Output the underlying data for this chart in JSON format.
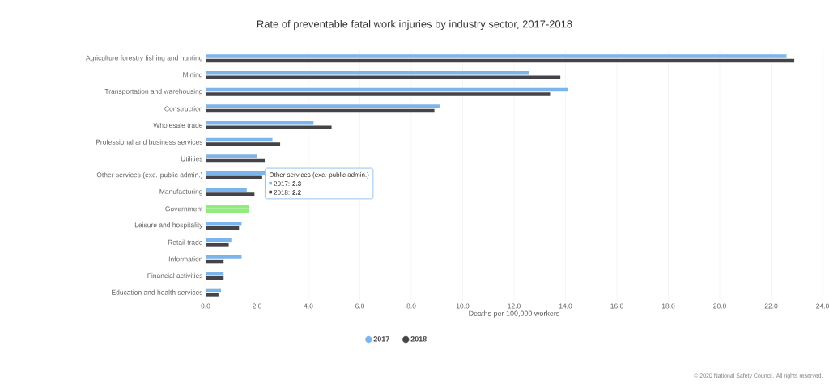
{
  "chart_data": {
    "type": "bar",
    "orientation": "horizontal",
    "title": "Rate of preventable fatal work injuries by industry sector, 2017-2018",
    "xlabel": "Deaths per 100,000 workers",
    "categories": [
      "Agriculture forestry fishing and hunting",
      "Mining",
      "Transportation and warehousing",
      "Construction",
      "Wholesale trade",
      "Professional and business services",
      "Utilities",
      "Other services (exc. public admin.)",
      "Manufacturing",
      "Government",
      "Leisure and hospitality",
      "Retail trade",
      "Information",
      "Financial activities",
      "Education and health services"
    ],
    "series": [
      {
        "name": "2017",
        "color": "#7cb5ec",
        "colors": [
          "#7cb5ec",
          "#7cb5ec",
          "#7cb5ec",
          "#7cb5ec",
          "#7cb5ec",
          "#7cb5ec",
          "#7cb5ec",
          "#7cb5ec",
          "#7cb5ec",
          "#90ed7d",
          "#7cb5ec",
          "#7cb5ec",
          "#7cb5ec",
          "#7cb5ec",
          "#7cb5ec"
        ],
        "values": [
          22.6,
          12.6,
          14.1,
          9.1,
          4.2,
          2.6,
          2.0,
          2.3,
          1.6,
          1.7,
          1.4,
          1.0,
          1.4,
          0.7,
          0.6
        ]
      },
      {
        "name": "2018",
        "color": "#434348",
        "colors": [
          "#434348",
          "#434348",
          "#434348",
          "#434348",
          "#434348",
          "#434348",
          "#434348",
          "#434348",
          "#434348",
          "#90ed7d",
          "#434348",
          "#434348",
          "#434348",
          "#434348",
          "#434348"
        ],
        "values": [
          22.9,
          13.8,
          13.4,
          8.9,
          4.9,
          2.9,
          2.3,
          2.2,
          1.9,
          1.7,
          1.3,
          0.9,
          0.7,
          0.7,
          0.5
        ]
      }
    ],
    "xlim": [
      0,
      24
    ],
    "xticks": [
      {
        "value": 0,
        "label": "0.0"
      },
      {
        "value": 2,
        "label": "2.0"
      },
      {
        "value": 4,
        "label": "4.0"
      },
      {
        "value": 6,
        "label": "6.0"
      },
      {
        "value": 8,
        "label": "8.0"
      },
      {
        "value": 10,
        "label": "10.0"
      },
      {
        "value": 12,
        "label": "12.0"
      },
      {
        "value": 14,
        "label": "14.0"
      },
      {
        "value": 16,
        "label": "16.0"
      },
      {
        "value": 18,
        "label": "18.0"
      },
      {
        "value": 20,
        "label": "20.0"
      },
      {
        "value": 22,
        "label": "22.0"
      },
      {
        "value": 24,
        "label": "24.0"
      }
    ],
    "grid": "x",
    "legend": "bottom",
    "annotations": [
      "Other services (exc. public admin.)",
      "2017: **2.3**",
      "2018: **2.2**",
      "© 2020 National Safety Council. All rights reserved."
    ]
  }
}
